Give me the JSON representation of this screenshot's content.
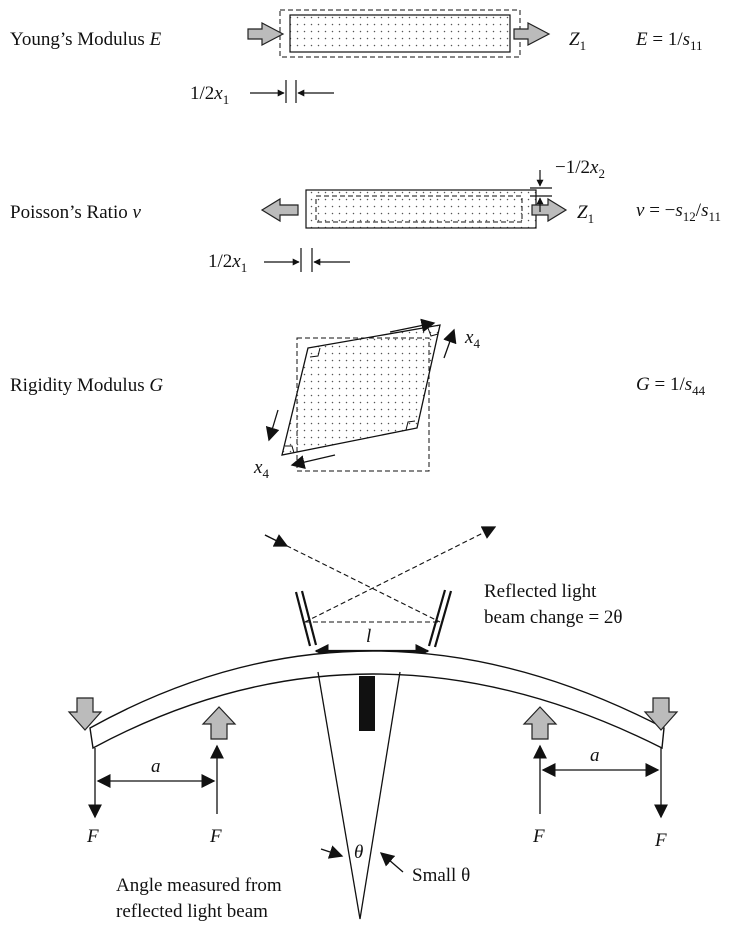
{
  "young": {
    "label_text": "Young’s Modulus ",
    "label_symbol": "E",
    "axis_main": "Z",
    "axis_sub": "1",
    "formula_lhs": "E",
    "formula_mid": " = 1/",
    "formula_s": "s",
    "formula_sub": "11",
    "strain_prefix": "1/2",
    "strain_var": "x",
    "strain_sub": "1"
  },
  "poisson": {
    "label_text": "Poisson’s Ratio ",
    "label_symbol": "v",
    "axis_main": "Z",
    "axis_sub": "1",
    "formula_lhs": "v",
    "formula_mid": " = −",
    "formula_s1": "s",
    "formula_sub1": "12",
    "formula_slash": "/",
    "formula_s2": "s",
    "formula_sub2": "11",
    "strain_prefix": "1/2",
    "strain_var": "x",
    "strain_sub": "1",
    "lateral_prefix": "−1/2",
    "lateral_var": "x",
    "lateral_sub": "2"
  },
  "rigidity": {
    "label_text": "Rigidity Modulus ",
    "label_symbol": "G",
    "formula_lhs": "G",
    "formula_mid": " = 1/",
    "formula_s": "s",
    "formula_sub": "44",
    "shear_var": "x",
    "shear_sub": "4"
  },
  "bending": {
    "reflected_line1": "Reflected light",
    "reflected_line2": "beam change = 2θ",
    "span_label": "l",
    "distance_label": "a",
    "force_label": "F",
    "angle_label": "θ",
    "small_angle_label": "Small θ",
    "angle_caption_line1": "Angle measured from",
    "angle_caption_line2": "reflected light beam"
  }
}
